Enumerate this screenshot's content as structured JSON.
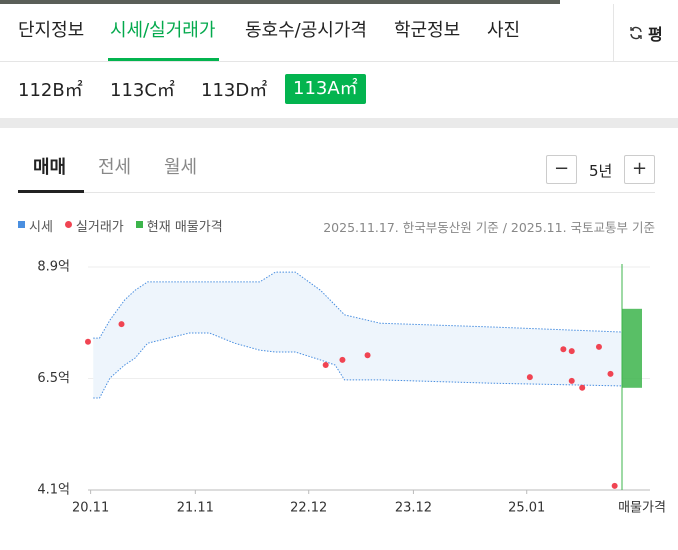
{
  "top_tabs": [
    "단지정보",
    "시세/실거래가",
    "동호수/공시가격",
    "학군정보",
    "사진"
  ],
  "unit_toggle": "평",
  "areas": [
    "112B㎡",
    "113C㎡",
    "113D㎡",
    "113A㎡"
  ],
  "trade_tabs": [
    "매매",
    "전세",
    "월세"
  ],
  "period": {
    "minus": "−",
    "label": "5년",
    "plus": "+"
  },
  "source_note": "2025.11.17. 한국부동산원 기준 / 2025.11. 국토교통부 기준",
  "chart_data": {
    "type": "combo",
    "xlim": [
      2020.85,
      2025.95
    ],
    "xticks": [
      {
        "value": 2020.875,
        "label": "20.11"
      },
      {
        "value": 2021.875,
        "label": "21.11"
      },
      {
        "value": 2022.958,
        "label": "22.12"
      },
      {
        "value": 2023.958,
        "label": "23.12"
      },
      {
        "value": 2025.04,
        "label": "25.01"
      }
    ],
    "ylim": [
      4.1,
      8.9
    ],
    "yticks": [
      {
        "value": 8.9,
        "label": "8.9억"
      },
      {
        "value": 6.5,
        "label": "6.5억"
      },
      {
        "value": 4.1,
        "label": "4.1억"
      }
    ],
    "grid": true,
    "series": [
      {
        "name": "시세",
        "type": "range",
        "color": "#4a8fe0",
        "x": [
          2020.9,
          2020.96,
          2021.06,
          2021.2,
          2021.3,
          2021.42,
          2021.82,
          2022.01,
          2022.25,
          2022.49,
          2022.64,
          2022.83,
          2023.07,
          2023.21,
          2023.3,
          2023.64,
          2024.69,
          2025.95
        ],
        "high": [
          7.37,
          7.37,
          7.76,
          8.19,
          8.4,
          8.58,
          8.58,
          8.58,
          8.58,
          8.58,
          8.79,
          8.79,
          8.4,
          8.08,
          7.87,
          7.69,
          7.61,
          7.5
        ],
        "low": [
          6.08,
          6.08,
          6.51,
          6.79,
          6.94,
          7.26,
          7.48,
          7.48,
          7.26,
          7.11,
          7.07,
          7.07,
          6.9,
          6.79,
          6.47,
          6.47,
          6.4,
          6.34
        ]
      },
      {
        "name": "실거래가",
        "type": "scatter",
        "color": "#f04452",
        "x": [
          2020.85,
          2021.17,
          2023.12,
          2023.28,
          2023.52,
          2025.07,
          2025.39,
          2025.47,
          2025.47,
          2025.57,
          2025.73,
          2025.84,
          2025.88
        ],
        "values": [
          7.29,
          7.67,
          6.79,
          6.9,
          7.0,
          6.53,
          7.13,
          7.09,
          6.45,
          6.3,
          7.18,
          6.6,
          4.19
        ]
      },
      {
        "name": "현재 매물가격",
        "type": "listing",
        "color": "#3cb44b",
        "category": "매물가격",
        "low": 6.3,
        "high": 8.0
      }
    ]
  }
}
